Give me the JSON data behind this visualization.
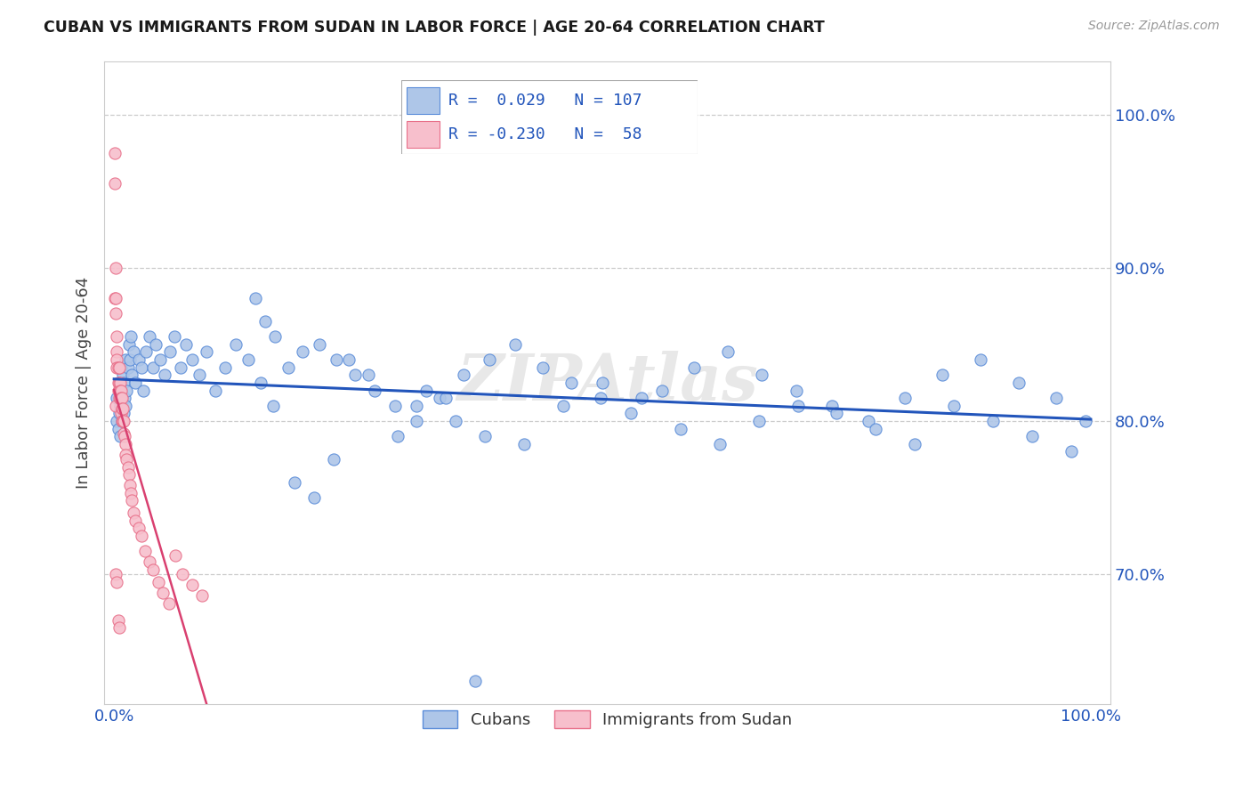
{
  "title": "CUBAN VS IMMIGRANTS FROM SUDAN IN LABOR FORCE | AGE 20-64 CORRELATION CHART",
  "source": "Source: ZipAtlas.com",
  "ylabel": "In Labor Force | Age 20-64",
  "xlim": [
    -0.01,
    1.02
  ],
  "ylim": [
    0.615,
    1.035
  ],
  "yticks": [
    0.7,
    0.8,
    0.9,
    1.0
  ],
  "ytick_labels": [
    "70.0%",
    "80.0%",
    "90.0%",
    "100.0%"
  ],
  "xtick_labels": [
    "0.0%",
    "100.0%"
  ],
  "xtick_positions": [
    0.0,
    1.0
  ],
  "cubans_R": 0.029,
  "cubans_N": 107,
  "sudan_R": -0.23,
  "sudan_N": 58,
  "blue_fill": "#aec6e8",
  "blue_edge": "#5b8dd9",
  "pink_fill": "#f7bfcc",
  "pink_edge": "#e8708a",
  "blue_line": "#2255bb",
  "pink_line": "#d94070",
  "watermark": "ZIPAtlas",
  "legend_blue": "Cubans",
  "legend_pink": "Immigrants from Sudan",
  "cubans_x": [
    0.003,
    0.003,
    0.004,
    0.005,
    0.005,
    0.006,
    0.006,
    0.007,
    0.007,
    0.008,
    0.008,
    0.009,
    0.009,
    0.01,
    0.01,
    0.011,
    0.012,
    0.012,
    0.013,
    0.014,
    0.015,
    0.016,
    0.017,
    0.018,
    0.02,
    0.022,
    0.025,
    0.028,
    0.03,
    0.033,
    0.036,
    0.04,
    0.043,
    0.047,
    0.052,
    0.057,
    0.062,
    0.068,
    0.074,
    0.08,
    0.087,
    0.095,
    0.104,
    0.114,
    0.125,
    0.137,
    0.15,
    0.163,
    0.178,
    0.193,
    0.21,
    0.228,
    0.247,
    0.267,
    0.288,
    0.31,
    0.333,
    0.358,
    0.384,
    0.411,
    0.439,
    0.468,
    0.498,
    0.529,
    0.561,
    0.594,
    0.628,
    0.663,
    0.699,
    0.735,
    0.772,
    0.81,
    0.848,
    0.887,
    0.926,
    0.965,
    0.995,
    0.145,
    0.155,
    0.165,
    0.24,
    0.26,
    0.32,
    0.34,
    0.38,
    0.42,
    0.46,
    0.5,
    0.54,
    0.58,
    0.62,
    0.66,
    0.7,
    0.74,
    0.78,
    0.82,
    0.86,
    0.9,
    0.94,
    0.98,
    0.185,
    0.205,
    0.225,
    0.29,
    0.31,
    0.35,
    0.37
  ],
  "cubans_y": [
    0.8,
    0.815,
    0.795,
    0.805,
    0.825,
    0.81,
    0.79,
    0.82,
    0.835,
    0.8,
    0.815,
    0.83,
    0.8,
    0.805,
    0.825,
    0.815,
    0.81,
    0.84,
    0.82,
    0.835,
    0.85,
    0.84,
    0.855,
    0.83,
    0.845,
    0.825,
    0.84,
    0.835,
    0.82,
    0.845,
    0.855,
    0.835,
    0.85,
    0.84,
    0.83,
    0.845,
    0.855,
    0.835,
    0.85,
    0.84,
    0.83,
    0.845,
    0.82,
    0.835,
    0.85,
    0.84,
    0.825,
    0.81,
    0.835,
    0.845,
    0.85,
    0.84,
    0.83,
    0.82,
    0.81,
    0.8,
    0.815,
    0.83,
    0.84,
    0.85,
    0.835,
    0.825,
    0.815,
    0.805,
    0.82,
    0.835,
    0.845,
    0.83,
    0.82,
    0.81,
    0.8,
    0.815,
    0.83,
    0.84,
    0.825,
    0.815,
    0.8,
    0.88,
    0.865,
    0.855,
    0.84,
    0.83,
    0.82,
    0.815,
    0.79,
    0.785,
    0.81,
    0.825,
    0.815,
    0.795,
    0.785,
    0.8,
    0.81,
    0.805,
    0.795,
    0.785,
    0.81,
    0.8,
    0.79,
    0.78,
    0.76,
    0.75,
    0.775,
    0.79,
    0.81,
    0.8,
    0.63
  ],
  "sudan_x": [
    0.001,
    0.001,
    0.001,
    0.002,
    0.002,
    0.002,
    0.002,
    0.003,
    0.003,
    0.003,
    0.003,
    0.004,
    0.004,
    0.004,
    0.005,
    0.005,
    0.005,
    0.005,
    0.006,
    0.006,
    0.006,
    0.007,
    0.007,
    0.007,
    0.008,
    0.008,
    0.008,
    0.009,
    0.009,
    0.01,
    0.01,
    0.011,
    0.012,
    0.012,
    0.013,
    0.014,
    0.015,
    0.016,
    0.017,
    0.018,
    0.02,
    0.022,
    0.025,
    0.028,
    0.032,
    0.036,
    0.04,
    0.045,
    0.05,
    0.056,
    0.063,
    0.07,
    0.08,
    0.09,
    0.002,
    0.003,
    0.004,
    0.005
  ],
  "sudan_y": [
    0.955,
    0.975,
    0.88,
    0.9,
    0.88,
    0.87,
    0.81,
    0.855,
    0.845,
    0.84,
    0.835,
    0.835,
    0.825,
    0.82,
    0.835,
    0.825,
    0.82,
    0.815,
    0.825,
    0.82,
    0.815,
    0.82,
    0.815,
    0.805,
    0.815,
    0.808,
    0.8,
    0.808,
    0.8,
    0.8,
    0.792,
    0.79,
    0.785,
    0.778,
    0.775,
    0.77,
    0.765,
    0.758,
    0.753,
    0.748,
    0.74,
    0.735,
    0.73,
    0.725,
    0.715,
    0.708,
    0.703,
    0.695,
    0.688,
    0.681,
    0.712,
    0.7,
    0.693,
    0.686,
    0.7,
    0.695,
    0.67,
    0.665
  ]
}
